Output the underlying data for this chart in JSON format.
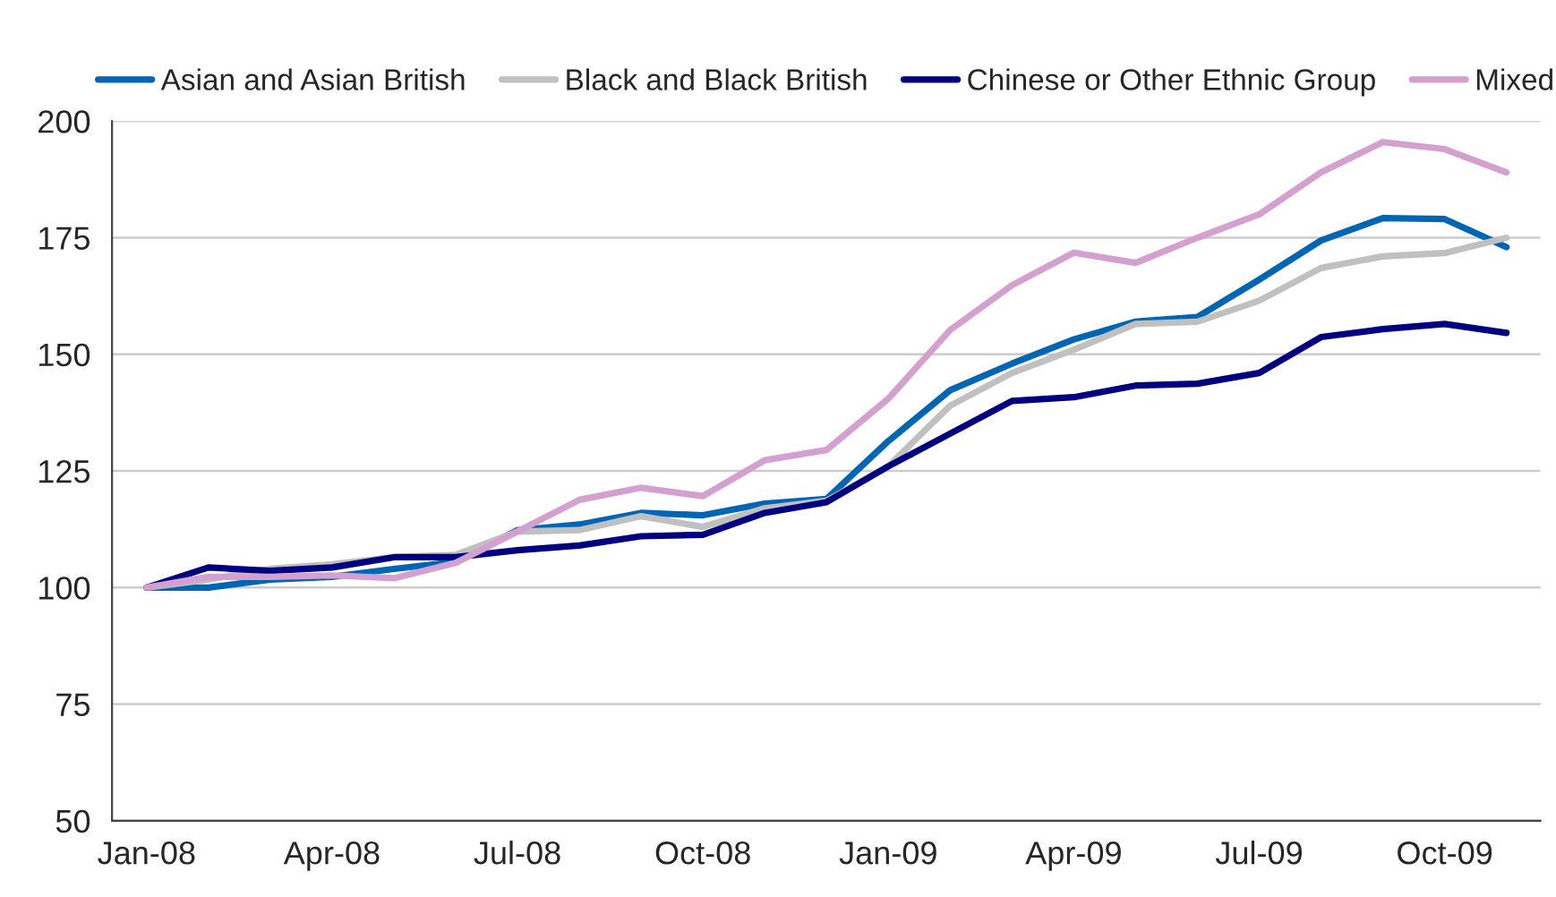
{
  "chart_data": {
    "type": "line",
    "categories": [
      "Jan-08",
      null,
      null,
      "Apr-08",
      null,
      null,
      "Jul-08",
      null,
      null,
      "Oct-08",
      null,
      null,
      "Jan-09",
      null,
      null,
      "Apr-09",
      null,
      null,
      "Jul-09",
      null,
      null,
      "Oct-09",
      null
    ],
    "series": [
      {
        "name": "Asian and Asian British",
        "color": "#0066b3",
        "values": [
          100,
          100,
          101.7,
          102.3,
          104,
          105.5,
          112.3,
          113.5,
          116,
          115.5,
          118,
          119,
          131.4,
          142.3,
          148,
          153.2,
          157,
          158,
          166,
          174.4,
          179.2,
          179,
          173
        ]
      },
      {
        "name": "Black and Black British",
        "color": "#c0c0c0",
        "values": [
          100,
          101.7,
          104,
          105,
          106.5,
          107,
          112,
          112.3,
          115.3,
          113,
          117,
          118.6,
          126,
          139,
          146,
          151,
          156.5,
          157,
          161.5,
          168.5,
          171,
          171.7,
          175
        ]
      },
      {
        "name": "Chinese or Other Ethnic Group",
        "color": "#000080",
        "values": [
          100,
          104.3,
          103.6,
          104.3,
          106.5,
          106.5,
          108,
          109,
          111,
          111.3,
          116,
          118.3,
          126,
          133,
          140,
          140.8,
          143.3,
          143.7,
          146,
          153.7,
          155.4,
          156.5,
          154.6
        ]
      },
      {
        "name": "Mixed",
        "color": "#d4a0d0",
        "values": [
          100,
          102.3,
          102.3,
          102.6,
          102,
          105.3,
          112,
          118.8,
          121.4,
          119.6,
          127.3,
          129.5,
          140.5,
          155.2,
          164.8,
          171.8,
          169.6,
          175,
          180,
          189,
          195.5,
          194,
          189
        ]
      }
    ],
    "ylim": [
      50,
      200
    ],
    "yticks": [
      50,
      75,
      100,
      125,
      150,
      175,
      200
    ],
    "grid": "y",
    "legend": "top",
    "line_style": "solid"
  }
}
